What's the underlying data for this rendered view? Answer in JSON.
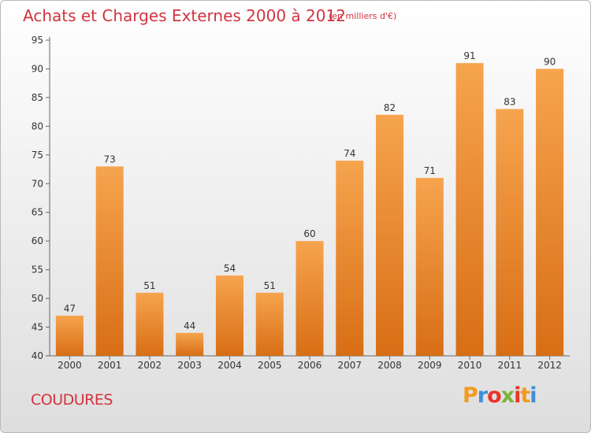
{
  "title": "Achats et Charges Externes 2000 à 2012",
  "subtitle": "(en milliers d'€)",
  "commune": "COUDURES",
  "brand": "Proxiti",
  "colors": {
    "title": "#d2333f",
    "bar_top": "#f6a44e",
    "bar_bottom": "#d86e15",
    "brand_letters": [
      "#f39a1e",
      "#3e8fd8",
      "#e8342a",
      "#7ab539",
      "#e8342a",
      "#f39a1e",
      "#3e8fd8"
    ]
  },
  "chart_data": {
    "type": "bar",
    "categories": [
      "2000",
      "2001",
      "2002",
      "2003",
      "2004",
      "2005",
      "2006",
      "2007",
      "2008",
      "2009",
      "2010",
      "2011",
      "2012"
    ],
    "values": [
      47,
      73,
      51,
      44,
      54,
      51,
      60,
      74,
      82,
      71,
      91,
      83,
      90
    ],
    "title": "Achats et Charges Externes 2000 à 2012",
    "ylim": [
      40,
      95
    ],
    "yticks": [
      40,
      45,
      50,
      55,
      60,
      65,
      70,
      75,
      80,
      85,
      90,
      95
    ],
    "grid": false,
    "data_labels": true
  }
}
